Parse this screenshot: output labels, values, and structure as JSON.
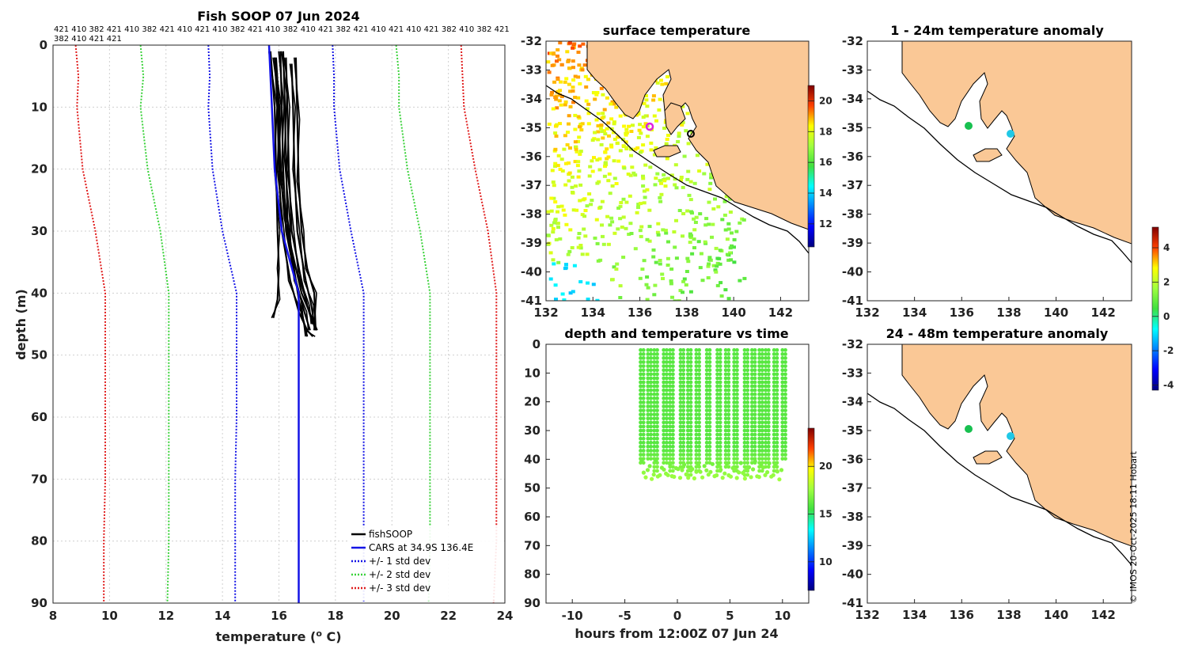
{
  "colors": {
    "land": "#fac896",
    "fish": "#000000",
    "cars": "#1414e6",
    "std1": "#1414e6",
    "std2": "#3ad23a",
    "std3": "#e01c1c",
    "grid": "#cfcfcf",
    "temp_marker": "#e020e0",
    "anom_cool": "#20c8e6",
    "anom_warm": "#18c050"
  },
  "credit": "© IMOS 20-Oct-2025 18:11 Hobart",
  "chart_data": [
    {
      "id": "profile",
      "type": "line",
      "title": "Fish SOOP 07 Jun 2024",
      "xlabel": "temperature (",
      "xlabel_sup": "o",
      "xlabel_tail": " C)",
      "ylabel": "depth (m)",
      "xlim": [
        8,
        24
      ],
      "ylim": [
        0,
        90
      ],
      "xticks": [
        "8",
        "10",
        "12",
        "14",
        "16",
        "18",
        "20",
        "22",
        "24"
      ],
      "yticks": [
        "0",
        "10",
        "20",
        "30",
        "40",
        "50",
        "60",
        "70",
        "80",
        "90"
      ],
      "grid": true,
      "header_line1": "421 410 382 421 410 382 421 410 421 410 382 421 410 382 410 421 382 421 410 421 410 421 382 410 382 421",
      "header_line2": "382 410 421 421",
      "legend": {
        "position": "bottom-right",
        "entries": [
          {
            "label": "fishSOOP",
            "style": "solid",
            "color": "#000000"
          },
          {
            "label": "CARS at 34.9S 136.4E",
            "style": "solid",
            "color": "#1414e6"
          },
          {
            "label": "+/- 1 std dev",
            "style": "dotted",
            "color": "#1414e6"
          },
          {
            "label": "+/- 2 std dev",
            "style": "dotted",
            "color": "#3ad23a"
          },
          {
            "label": "+/- 3 std dev",
            "style": "dotted",
            "color": "#e01c1c"
          }
        ]
      },
      "depth_levels": [
        0,
        5,
        10,
        20,
        30,
        40,
        50,
        60,
        70,
        80,
        90
      ],
      "cars_mean": [
        15.65,
        15.7,
        15.75,
        15.85,
        16.1,
        16.7,
        16.7,
        16.7,
        16.7,
        16.7,
        16.7
      ],
      "std_minus1": [
        13.5,
        13.55,
        13.5,
        13.65,
        14.0,
        14.5,
        14.5,
        14.5,
        14.45,
        14.45,
        14.45
      ],
      "std_plus1": [
        17.9,
        17.95,
        17.95,
        18.15,
        18.55,
        19.0,
        19.0,
        19.0,
        19.0,
        19.0,
        19.0
      ],
      "std_minus2": [
        11.1,
        11.2,
        11.1,
        11.35,
        11.8,
        12.1,
        12.1,
        12.1,
        12.1,
        12.1,
        12.05
      ],
      "std_plus2": [
        20.15,
        20.25,
        20.25,
        20.55,
        21.0,
        21.35,
        21.35,
        21.35,
        21.35,
        21.35,
        21.3
      ],
      "std_minus3": [
        8.8,
        8.9,
        8.85,
        9.05,
        9.5,
        9.85,
        9.85,
        9.85,
        9.85,
        9.8,
        9.8
      ],
      "std_plus3": [
        22.45,
        22.5,
        22.55,
        22.95,
        23.4,
        23.7,
        23.7,
        23.7,
        23.7,
        23.7,
        23.6
      ],
      "fish_profiles": [
        {
          "depth": [
            2,
            10,
            20,
            30,
            38,
            43,
            46,
            47
          ],
          "temp": [
            15.85,
            15.95,
            16.0,
            16.1,
            16.4,
            16.7,
            17.0,
            17.2
          ]
        },
        {
          "depth": [
            1,
            10,
            20,
            30,
            38,
            43,
            46
          ],
          "temp": [
            16.05,
            16.1,
            16.15,
            16.25,
            16.6,
            16.9,
            17.1
          ]
        },
        {
          "depth": [
            2,
            10,
            20,
            30,
            37,
            42,
            45
          ],
          "temp": [
            16.25,
            16.3,
            16.35,
            16.45,
            16.75,
            17.0,
            17.2
          ]
        },
        {
          "depth": [
            3,
            10,
            20,
            30,
            38,
            42,
            45
          ],
          "temp": [
            16.45,
            16.5,
            16.55,
            16.65,
            16.95,
            17.15,
            17.25
          ]
        },
        {
          "depth": [
            1,
            10,
            20,
            30,
            36,
            41,
            44
          ],
          "temp": [
            15.7,
            15.85,
            15.9,
            15.95,
            16.0,
            15.95,
            15.8
          ]
        },
        {
          "depth": [
            2,
            12,
            22,
            30,
            36,
            40,
            46
          ],
          "temp": [
            16.6,
            16.65,
            16.7,
            16.8,
            17.0,
            17.25,
            17.3
          ]
        },
        {
          "depth": [
            2,
            10,
            20,
            28,
            34,
            40,
            46
          ],
          "temp": [
            15.9,
            16.0,
            16.05,
            16.2,
            16.5,
            16.8,
            17.35
          ]
        },
        {
          "depth": [
            1,
            8,
            18,
            28,
            35,
            41,
            47
          ],
          "temp": [
            16.15,
            16.2,
            16.25,
            16.3,
            16.5,
            16.7,
            17.0
          ]
        }
      ]
    },
    {
      "id": "sst",
      "type": "heatmap",
      "title": "surface temperature",
      "xlim": [
        132,
        143.2
      ],
      "ylim": [
        -41,
        -32
      ],
      "xticks": [
        "132",
        "134",
        "136",
        "138",
        "140",
        "142"
      ],
      "yticks": [
        "-32",
        "-33",
        "-34",
        "-35",
        "-36",
        "-37",
        "-38",
        "-39",
        "-40",
        "-41"
      ],
      "colorbar": {
        "range": [
          10.5,
          21
        ],
        "ticks": [
          "12",
          "14",
          "16",
          "18",
          "20"
        ]
      },
      "markers": [
        {
          "lon": 136.4,
          "lat": -34.95,
          "color": "#e020e0"
        },
        {
          "lon": 138.1,
          "lat": -35.2,
          "color": "#000000"
        }
      ]
    },
    {
      "id": "time_depth",
      "type": "scatter",
      "title": "depth and temperature vs time",
      "xlabel": "hours from 12:00Z 07 Jun 24",
      "xlim": [
        -12.5,
        12.5
      ],
      "ylim": [
        0,
        90
      ],
      "xticks": [
        "-10",
        "-5",
        "0",
        "5",
        "10"
      ],
      "yticks": [
        "0",
        "10",
        "20",
        "30",
        "40",
        "50",
        "60",
        "70",
        "80",
        "90"
      ],
      "colorbar": {
        "range": [
          7,
          24
        ],
        "ticks": [
          "10",
          "15",
          "20"
        ]
      },
      "cast_hours": [
        -3.5,
        -2.8,
        -2.2,
        -1.3,
        -0.7,
        0.3,
        1.0,
        1.8,
        2.8,
        3.8,
        4.6,
        5.4,
        6.4,
        7.1,
        7.8,
        8.4,
        9.2,
        10.0
      ],
      "cast_max_depth": [
        42,
        41,
        44,
        42,
        45,
        43,
        46,
        44,
        42,
        45,
        43,
        44,
        46,
        42,
        44,
        43,
        45,
        41
      ]
    },
    {
      "id": "anom_shallow",
      "type": "heatmap",
      "title": "1 - 24m temperature anomaly",
      "xlim": [
        132,
        143.2
      ],
      "ylim": [
        -41,
        -32
      ],
      "xticks": [
        "132",
        "134",
        "136",
        "138",
        "140",
        "142"
      ],
      "yticks": [
        "-32",
        "-33",
        "-34",
        "-35",
        "-36",
        "-37",
        "-38",
        "-39",
        "-40",
        "-41"
      ],
      "markers": [
        {
          "lon": 136.3,
          "lat": -34.95,
          "value": 0.3
        },
        {
          "lon": 138.1,
          "lat": -35.2,
          "value": -1.2
        }
      ]
    },
    {
      "id": "anom_deep",
      "type": "heatmap",
      "title": "24 - 48m temperature anomaly",
      "xlim": [
        132,
        143.2
      ],
      "ylim": [
        -41,
        -32
      ],
      "xticks": [
        "132",
        "134",
        "136",
        "138",
        "140",
        "142"
      ],
      "yticks": [
        "-32",
        "-33",
        "-34",
        "-35",
        "-36",
        "-37",
        "-38",
        "-39",
        "-40",
        "-41"
      ],
      "markers": [
        {
          "lon": 136.3,
          "lat": -34.95,
          "value": 0.3
        },
        {
          "lon": 138.1,
          "lat": -35.2,
          "value": -1.2
        }
      ]
    }
  ],
  "anomaly_colorbar": {
    "range": [
      -4.3,
      5.2
    ],
    "ticks": [
      "-4",
      "-2",
      "0",
      "2",
      "4"
    ]
  }
}
